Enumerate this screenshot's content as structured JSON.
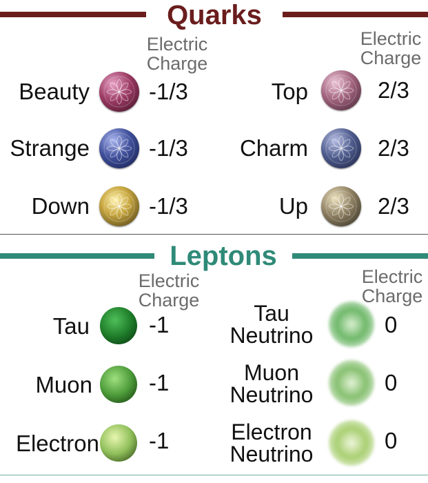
{
  "quarks": {
    "title": "Quarks",
    "title_color": "#6b1d1d",
    "charge_header": [
      "Electric",
      "Charge"
    ],
    "items": [
      {
        "name": "Beauty",
        "charge": "-1/3",
        "color": "#9b3a63"
      },
      {
        "name": "Top",
        "charge": "2/3",
        "color": "#a2647e"
      },
      {
        "name": "Strange",
        "charge": "-1/3",
        "color": "#3f4f9a"
      },
      {
        "name": "Charm",
        "charge": "2/3",
        "color": "#4e5b8c"
      },
      {
        "name": "Down",
        "charge": "-1/3",
        "color": "#b69a3a"
      },
      {
        "name": "Up",
        "charge": "2/3",
        "color": "#8e8062"
      }
    ]
  },
  "leptons": {
    "title": "Leptons",
    "title_color": "#2f8a78",
    "charge_header": [
      "Electric",
      "Charge"
    ],
    "items": [
      {
        "name": "Tau",
        "charge": "-1",
        "color": "#1f7d2a"
      },
      {
        "name": [
          "Tau",
          "Neutrino"
        ],
        "charge": "0",
        "color": "#6fb86a"
      },
      {
        "name": "Muon",
        "charge": "-1",
        "color": "#4d9b3a"
      },
      {
        "name": [
          "Muon",
          "Neutrino"
        ],
        "charge": "0",
        "color": "#86c070"
      },
      {
        "name": "Electron",
        "charge": "-1",
        "color": "#8fbf5a"
      },
      {
        "name": [
          "Electron",
          "Neutrino"
        ],
        "charge": "0",
        "color": "#a9cf72"
      }
    ]
  }
}
